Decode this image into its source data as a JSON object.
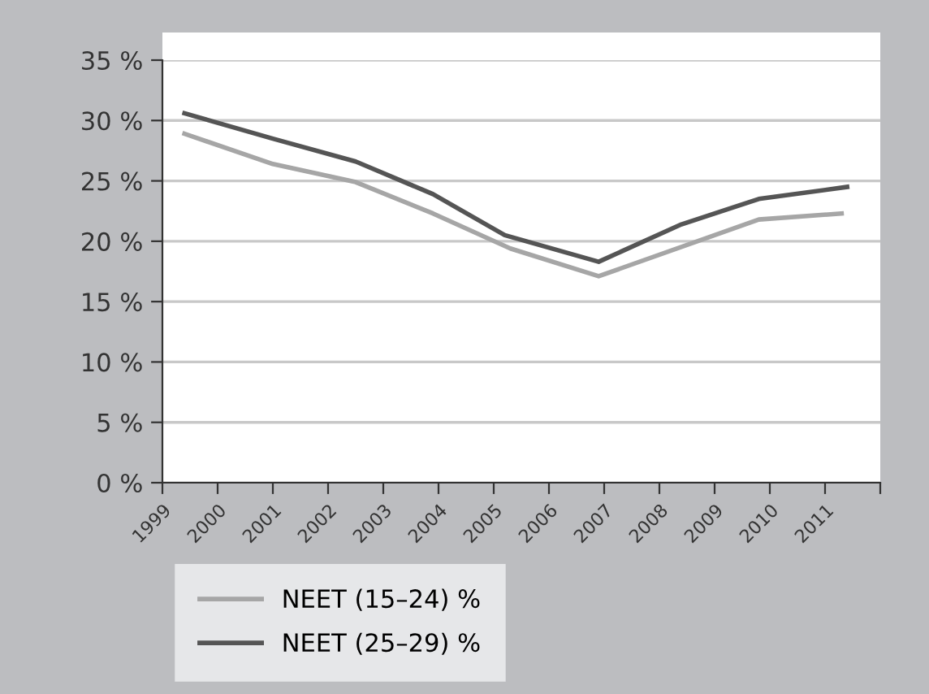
{
  "chart_data": {
    "type": "line",
    "series": [
      {
        "name": "NEET (15–24) %",
        "color": "#a6a6a6",
        "x": [
          1999.4,
          2001.0,
          2002.5,
          2003.9,
          2005.3,
          2006.9,
          2009.8,
          2011.3
        ],
        "values": [
          28.9,
          26.4,
          24.9,
          22.3,
          19.4,
          17.1,
          21.8,
          22.3
        ]
      },
      {
        "name": "NEET (25–29) %",
        "color": "#555555",
        "x": [
          1999.4,
          2001.0,
          2002.5,
          2003.9,
          2005.2,
          2006.9,
          2008.4,
          2009.8,
          2011.4
        ],
        "values": [
          30.6,
          28.5,
          26.6,
          23.9,
          20.5,
          18.3,
          21.4,
          23.5,
          24.5
        ]
      }
    ],
    "xlim": [
      1999,
      2012
    ],
    "xticks": [
      1999,
      2000,
      2001,
      2002,
      2003,
      2004,
      2005,
      2006,
      2007,
      2008,
      2009,
      2010,
      2011,
      {
        "value": 2012,
        "label": null
      }
    ],
    "ylim": [
      0,
      35
    ],
    "yticks": [
      {
        "value": 0,
        "label": "0 %"
      },
      {
        "value": 5,
        "label": "5 %"
      },
      {
        "value": 10,
        "label": "10 %"
      },
      {
        "value": 15,
        "label": "15 %"
      },
      {
        "value": 20,
        "label": "20 %"
      },
      {
        "value": 25,
        "label": "25 %"
      },
      {
        "value": 30,
        "label": "30 %"
      },
      {
        "value": 35,
        "label": "35 %"
      }
    ],
    "grid": "y",
    "legend": "bottom left",
    "marker": "none",
    "line_style": "solid"
  }
}
